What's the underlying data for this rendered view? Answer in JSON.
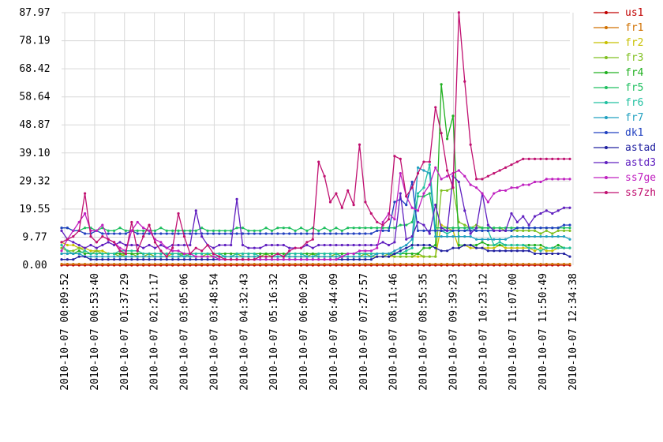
{
  "chart_data": {
    "type": "line",
    "title": "",
    "xlabel": "",
    "ylabel": "",
    "ylim": [
      0,
      87.97
    ],
    "y_ticks": [
      "0.00",
      "9.77",
      "19.55",
      "29.32",
      "39.10",
      "48.87",
      "58.64",
      "68.42",
      "78.19",
      "87.97"
    ],
    "x_ticks": [
      "2010-10-07 00:09:52",
      "2010-10-07 00:53:40",
      "2010-10-07 01:37:29",
      "2010-10-07 02:21:17",
      "2010-10-07 03:05:06",
      "2010-10-07 03:48:54",
      "2010-10-07 04:32:43",
      "2010-10-07 05:16:32",
      "2010-10-07 06:00:20",
      "2010-10-07 06:44:09",
      "2010-10-07 07:27:57",
      "2010-10-07 08:11:46",
      "2010-10-07 08:55:35",
      "2010-10-07 09:39:23",
      "2010-10-07 10:23:12",
      "2010-10-07 11:07:00",
      "2010-10-07 11:50:49",
      "2010-10-07 12:34:38"
    ],
    "x_start": "2010-10-07 00:09:52",
    "x_end": "2010-10-07 12:34:38",
    "grid": true,
    "legend_position": "right",
    "series": [
      {
        "name": "us1",
        "color": "#c00000",
        "values": [
          0.0,
          0.0,
          0.0,
          0.0,
          0.0,
          0.0,
          0.0,
          0.0,
          0.0,
          0.0,
          0.0,
          0.0,
          0.0,
          0.0,
          0.0,
          0.0,
          0.0,
          0.0,
          0.0,
          0.0,
          0.0,
          0.0,
          0.0,
          0.0,
          0.0,
          0.0,
          0.0,
          0.0,
          0.0,
          0.0,
          0.0,
          0.0,
          0.0,
          0.0,
          0.0,
          0.0,
          0.0,
          0.0,
          0.0,
          0.0,
          0.0,
          0.0,
          0.0,
          0.0,
          0.0,
          0.0,
          0.0,
          0.0,
          0.0,
          0.0,
          0.0,
          0.0,
          0.0,
          0.0,
          0.0,
          0.0,
          0.0,
          0.0,
          0.0,
          0.0,
          0.0,
          0.0,
          0.0,
          0.0,
          0.0,
          0.0,
          0.0,
          0.0,
          0.0,
          0.0,
          0.0,
          0.0,
          0.0,
          0.0,
          0.0,
          0.0,
          0.0,
          0.0,
          0.0,
          0.0,
          0.0,
          0.0,
          0.0,
          0.0,
          0.0,
          0.0,
          0.0,
          0.0
        ]
      },
      {
        "name": "fr1",
        "color": "#d07000",
        "values": [
          0.4,
          0.4,
          0.4,
          0.4,
          0.4,
          0.4,
          0.4,
          0.4,
          0.4,
          0.4,
          0.4,
          0.4,
          0.4,
          0.4,
          0.4,
          0.4,
          0.4,
          0.4,
          0.4,
          0.4,
          0.4,
          0.4,
          0.4,
          0.4,
          0.4,
          0.4,
          0.4,
          0.4,
          0.4,
          0.4,
          0.4,
          0.4,
          0.4,
          0.4,
          0.4,
          0.4,
          0.4,
          0.4,
          0.4,
          0.4,
          0.4,
          0.4,
          0.4,
          0.4,
          0.4,
          0.4,
          0.4,
          0.4,
          0.4,
          0.4,
          0.4,
          0.4,
          0.4,
          0.4,
          0.4,
          0.4,
          0.4,
          0.4,
          0.4,
          0.4,
          0.4,
          0.4,
          0.4,
          0.4,
          0.4,
          0.4,
          0.4,
          0.4,
          0.4,
          0.4,
          0.4,
          0.4,
          0.4,
          0.4,
          0.4,
          0.4,
          0.4,
          0.4,
          0.4,
          0.4,
          0.4,
          0.4,
          0.4,
          0.4,
          0.4,
          0.4,
          0.4,
          0.4
        ]
      },
      {
        "name": "fr2",
        "color": "#c8c000",
        "values": [
          8,
          7,
          7,
          6,
          6,
          5,
          5,
          5,
          4,
          4,
          4,
          3,
          3,
          3,
          3,
          3,
          3,
          3,
          3,
          4,
          4,
          3,
          3,
          3,
          3,
          3,
          3,
          3,
          3,
          3,
          3,
          3,
          3,
          3,
          3,
          3,
          3,
          3,
          3,
          3,
          3,
          3,
          3,
          3,
          3,
          3,
          3,
          3,
          3,
          3,
          3,
          3,
          3,
          3,
          3,
          3,
          3,
          3,
          3,
          3,
          3,
          3,
          3,
          3,
          3,
          14,
          13,
          12,
          6,
          7,
          6,
          6,
          6,
          6,
          6,
          7,
          6,
          6,
          6,
          6,
          6,
          5,
          6,
          5,
          5,
          6,
          6,
          6
        ]
      },
      {
        "name": "fr3",
        "color": "#80c020",
        "values": [
          6,
          5,
          5,
          6,
          5,
          4,
          5,
          4,
          4,
          4,
          3,
          4,
          4,
          3,
          3,
          4,
          3,
          3,
          3,
          3,
          3,
          4,
          3,
          3,
          3,
          4,
          3,
          3,
          3,
          3,
          4,
          3,
          3,
          3,
          3,
          4,
          3,
          3,
          3,
          3,
          3,
          3,
          3,
          4,
          3,
          3,
          3,
          4,
          3,
          3,
          3,
          3,
          4,
          3,
          3,
          3,
          4,
          3,
          3,
          3,
          3,
          4,
          3,
          3,
          3,
          26,
          26,
          27,
          15,
          14,
          13,
          14,
          13,
          13,
          13,
          13,
          12,
          12,
          12,
          12,
          12,
          12,
          11,
          12,
          11,
          12,
          12,
          12
        ]
      },
      {
        "name": "fr4",
        "color": "#20b020",
        "values": [
          4,
          4,
          4,
          5,
          4,
          4,
          4,
          4,
          4,
          4,
          4,
          4,
          4,
          4,
          4,
          4,
          4,
          4,
          4,
          4,
          4,
          4,
          4,
          4,
          4,
          4,
          4,
          4,
          4,
          4,
          4,
          4,
          4,
          4,
          4,
          4,
          4,
          4,
          4,
          4,
          4,
          4,
          4,
          4,
          4,
          4,
          4,
          4,
          4,
          4,
          4,
          4,
          4,
          4,
          4,
          4,
          4,
          4,
          4,
          4,
          4,
          4,
          6,
          6,
          7,
          63,
          44,
          52,
          7,
          7,
          7,
          7,
          8,
          7,
          7,
          7,
          7,
          7,
          7,
          7,
          7,
          7,
          7,
          6,
          6,
          7,
          6,
          6
        ]
      },
      {
        "name": "fr5",
        "color": "#20c060",
        "values": [
          13,
          13,
          12,
          12,
          13,
          13,
          12,
          13,
          12,
          12,
          13,
          12,
          12,
          12,
          12,
          12,
          12,
          13,
          12,
          12,
          12,
          12,
          12,
          12,
          13,
          12,
          12,
          12,
          12,
          12,
          13,
          13,
          12,
          12,
          12,
          13,
          12,
          13,
          13,
          13,
          12,
          13,
          12,
          13,
          12,
          13,
          12,
          13,
          12,
          13,
          13,
          13,
          13,
          13,
          13,
          13,
          13,
          13,
          14,
          14,
          15,
          24,
          24,
          25,
          13,
          13,
          13,
          13,
          13,
          13,
          13,
          13,
          13,
          13,
          13,
          13,
          13,
          13,
          13,
          13,
          13,
          13,
          13,
          13,
          13,
          13,
          13,
          13
        ]
      },
      {
        "name": "fr6",
        "color": "#20c0a0",
        "values": [
          7,
          5,
          4,
          4,
          5,
          4,
          4,
          4,
          4,
          4,
          5,
          5,
          5,
          5,
          4,
          4,
          4,
          4,
          4,
          4,
          4,
          3,
          4,
          4,
          4,
          4,
          4,
          4,
          3,
          3,
          4,
          4,
          4,
          4,
          3,
          3,
          3,
          3,
          3,
          4,
          4,
          4,
          3,
          3,
          4,
          4,
          4,
          4,
          3,
          4,
          4,
          4,
          4,
          4,
          4,
          4,
          4,
          4,
          4,
          5,
          6,
          25,
          27,
          35,
          12,
          12,
          11,
          12,
          12,
          12,
          13,
          12,
          12,
          12,
          7,
          8,
          7,
          7,
          7,
          7,
          6,
          6,
          5,
          6,
          6,
          6,
          6,
          6
        ]
      },
      {
        "name": "fr7",
        "color": "#20a0c0",
        "values": [
          4,
          4,
          4,
          4,
          3,
          3,
          3,
          3,
          3,
          3,
          3,
          3,
          3,
          3,
          3,
          3,
          3,
          3,
          3,
          3,
          3,
          3,
          3,
          3,
          3,
          3,
          3,
          3,
          3,
          3,
          3,
          3,
          3,
          3,
          3,
          3,
          3,
          3,
          3,
          3,
          3,
          3,
          3,
          3,
          3,
          3,
          3,
          3,
          3,
          3,
          3,
          3,
          3,
          3,
          4,
          4,
          4,
          5,
          6,
          7,
          9,
          34,
          33,
          32,
          10,
          10,
          10,
          10,
          10,
          10,
          10,
          9,
          9,
          9,
          9,
          9,
          9,
          10,
          10,
          10,
          10,
          10,
          10,
          10,
          10,
          10,
          10,
          9
        ]
      },
      {
        "name": "dk1",
        "color": "#2040c0",
        "values": [
          13,
          13,
          12,
          12,
          11,
          11,
          12,
          11,
          11,
          11,
          11,
          11,
          12,
          11,
          11,
          11,
          11,
          11,
          11,
          11,
          11,
          11,
          11,
          11,
          11,
          11,
          11,
          11,
          11,
          11,
          11,
          11,
          11,
          11,
          11,
          11,
          11,
          11,
          11,
          11,
          11,
          11,
          11,
          11,
          11,
          11,
          11,
          11,
          11,
          11,
          11,
          11,
          11,
          11,
          12,
          12,
          12,
          22,
          23,
          21,
          29,
          12,
          12,
          12,
          12,
          12,
          12,
          12,
          12,
          12,
          12,
          12,
          12,
          12,
          12,
          12,
          12,
          12,
          13,
          13,
          13,
          13,
          13,
          13,
          13,
          13,
          14,
          14
        ]
      },
      {
        "name": "astad",
        "color": "#2020a0",
        "values": [
          2,
          2,
          2,
          3,
          3,
          2,
          2,
          2,
          2,
          2,
          2,
          2,
          2,
          2,
          2,
          2,
          2,
          2,
          2,
          2,
          2,
          2,
          2,
          2,
          2,
          2,
          2,
          2,
          2,
          2,
          2,
          2,
          2,
          2,
          2,
          2,
          2,
          2,
          2,
          2,
          2,
          2,
          2,
          2,
          2,
          2,
          2,
          2,
          2,
          2,
          2,
          2,
          2,
          2,
          3,
          3,
          3,
          4,
          5,
          6,
          7,
          7,
          7,
          7,
          6,
          5,
          5,
          6,
          6,
          7,
          7,
          6,
          6,
          5,
          5,
          5,
          5,
          5,
          5,
          5,
          5,
          4,
          4,
          4,
          4,
          4,
          4,
          3
        ]
      },
      {
        "name": "astd3",
        "color": "#6020c0",
        "values": [
          12,
          9,
          8,
          7,
          6,
          7,
          6,
          7,
          8,
          7,
          8,
          7,
          7,
          7,
          6,
          7,
          6,
          7,
          6,
          7,
          7,
          7,
          7,
          19,
          10,
          7,
          6,
          7,
          7,
          7,
          23,
          7,
          6,
          6,
          6,
          7,
          7,
          7,
          7,
          6,
          6,
          6,
          7,
          6,
          7,
          7,
          7,
          7,
          7,
          7,
          7,
          7,
          7,
          7,
          7,
          8,
          7,
          8,
          25,
          9,
          10,
          15,
          14,
          11,
          21,
          13,
          12,
          31,
          29,
          19,
          11,
          13,
          25,
          14,
          12,
          12,
          12,
          18,
          15,
          17,
          14,
          17,
          18,
          19,
          18,
          19,
          20,
          20
        ]
      },
      {
        "name": "ss7ge",
        "color": "#c020c0",
        "values": [
          5,
          9,
          12,
          15,
          18,
          12,
          12,
          14,
          9,
          8,
          6,
          5,
          12,
          15,
          13,
          12,
          9,
          8,
          6,
          5,
          5,
          4,
          4,
          3,
          3,
          3,
          3,
          2,
          2,
          2,
          2,
          2,
          2,
          2,
          2,
          2,
          2,
          2,
          2,
          2,
          2,
          2,
          2,
          2,
          2,
          2,
          2,
          2,
          3,
          4,
          4,
          5,
          5,
          5,
          6,
          15,
          18,
          16,
          32,
          24,
          20,
          19,
          25,
          28,
          34,
          30,
          31,
          32,
          33,
          31,
          28,
          27,
          25,
          22,
          25,
          26,
          26,
          27,
          27,
          28,
          28,
          29,
          29,
          30,
          30,
          30,
          30,
          30
        ]
      },
      {
        "name": "ss7zh",
        "color": "#c01070",
        "values": [
          8,
          9,
          10,
          12,
          25,
          10,
          8,
          10,
          9,
          8,
          5,
          4,
          15,
          5,
          10,
          14,
          8,
          5,
          3,
          6,
          18,
          10,
          4,
          6,
          5,
          7,
          4,
          3,
          2,
          2,
          2,
          2,
          2,
          2,
          3,
          3,
          3,
          4,
          3,
          5,
          6,
          6,
          8,
          9,
          36,
          31,
          22,
          25,
          20,
          26,
          21,
          42,
          22,
          18,
          15,
          14,
          16,
          38,
          37,
          24,
          27,
          32,
          36,
          36,
          55,
          46,
          33,
          27,
          88,
          64,
          42,
          30,
          30,
          31,
          32,
          33,
          34,
          35,
          36,
          37,
          37,
          37,
          37,
          37,
          37,
          37,
          37,
          37
        ]
      }
    ]
  }
}
